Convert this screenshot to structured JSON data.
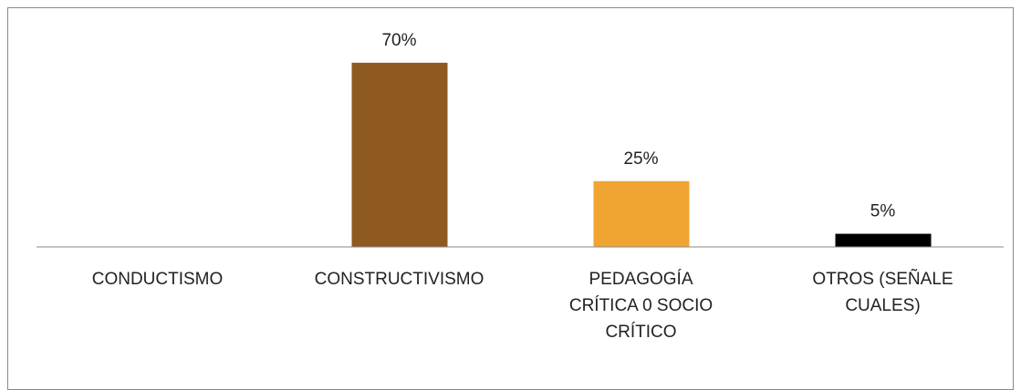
{
  "chart_data": {
    "type": "bar",
    "categories": [
      "CONDUCTISMO",
      "CONSTRUCTIVISMO",
      "PEDAGOGÍA CRÍTICA 0 SOCIO CRÍTICO",
      "OTROS (SEÑALE CUALES)"
    ],
    "values": [
      0,
      70,
      25,
      5
    ],
    "value_labels": [
      null,
      "70%",
      "25%",
      "5%"
    ],
    "colors": [
      null,
      "#8e5a20",
      "#f0a431",
      "#000000"
    ],
    "ylim": [
      0,
      80
    ]
  }
}
